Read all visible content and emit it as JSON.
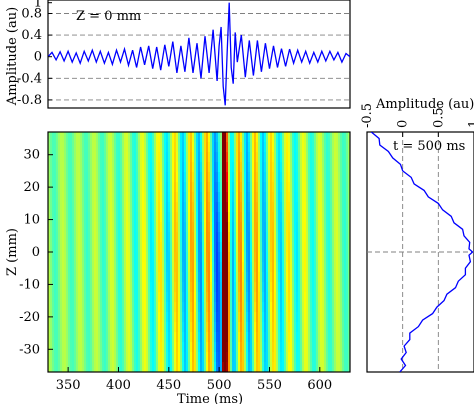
{
  "chart_data": [
    {
      "id": "top",
      "type": "line",
      "annotation": "Z = 0 mm",
      "ylabel": "Amplitude (au)",
      "yticks": [
        "1",
        "0.8",
        "0.4",
        "0",
        "-0.4",
        "-0.8"
      ],
      "ylim": [
        -0.95,
        1.05
      ],
      "xlim": [
        330,
        630
      ],
      "grid": "dashed horizontal at ±0.8, ±0.4",
      "line_color": "#0000ff",
      "series": [
        {
          "x": [
            330,
            334,
            338,
            342,
            346,
            350,
            354,
            358,
            362,
            366,
            370,
            374,
            378,
            382,
            386,
            390,
            394,
            398,
            402,
            406,
            410,
            414,
            418,
            422,
            426,
            430,
            434,
            438,
            442,
            446,
            450,
            454,
            458,
            462,
            466,
            470,
            474,
            478,
            482,
            486,
            490,
            494,
            498,
            500,
            502,
            504,
            506,
            508,
            510,
            512,
            514,
            516,
            518,
            522,
            526,
            530,
            534,
            538,
            542,
            546,
            550,
            554,
            558,
            562,
            566,
            570,
            574,
            578,
            582,
            586,
            590,
            594,
            598,
            602,
            606,
            610,
            614,
            618,
            622,
            626,
            630
          ],
          "y": [
            0.0,
            0.08,
            -0.06,
            0.09,
            -0.08,
            0.1,
            -0.1,
            0.07,
            -0.12,
            0.1,
            -0.08,
            0.12,
            -0.1,
            0.1,
            -0.12,
            0.08,
            -0.14,
            0.12,
            -0.1,
            0.14,
            -0.16,
            0.12,
            -0.2,
            0.18,
            -0.15,
            0.2,
            -0.22,
            0.18,
            -0.25,
            0.22,
            -0.18,
            0.28,
            -0.3,
            0.2,
            -0.28,
            0.35,
            -0.3,
            0.25,
            -0.4,
            0.38,
            -0.3,
            0.5,
            -0.45,
            0.2,
            0.55,
            -0.55,
            -0.9,
            0.1,
            1.0,
            -0.2,
            -0.5,
            0.45,
            -0.1,
            0.4,
            -0.38,
            0.3,
            -0.35,
            0.3,
            -0.28,
            0.25,
            -0.22,
            0.2,
            -0.2,
            0.15,
            -0.18,
            0.14,
            -0.12,
            0.12,
            -0.1,
            0.1,
            -0.12,
            0.08,
            -0.1,
            0.1,
            -0.08,
            0.1,
            -0.06,
            0.08,
            -0.1,
            0.06,
            0.0
          ]
        }
      ]
    },
    {
      "id": "heatmap",
      "type": "heatmap",
      "xlabel": "Time (ms)",
      "ylabel": "Z (mm)",
      "xticks": [
        "350",
        "400",
        "450",
        "500",
        "550",
        "600"
      ],
      "yticks": [
        "30",
        "20",
        "10",
        "0",
        "-10",
        "-20",
        "-30"
      ],
      "xlim": [
        330,
        630
      ],
      "ylim": [
        -37,
        37
      ],
      "colormap": "jet",
      "peak": {
        "time_ms": 505,
        "z_mm": 0
      }
    },
    {
      "id": "side",
      "type": "line",
      "annotation": "t = 500 ms",
      "xlabel": "Amplitude (au)",
      "xticks": [
        "-0.5",
        "0",
        "0.5",
        "1"
      ],
      "xlim": [
        -0.5,
        1.0
      ],
      "ylim": [
        -37,
        37
      ],
      "grid": "dashed vertical at 0 and 0.5, dashed horizontal at Z=0",
      "line_color": "#0000ff",
      "series": [
        {
          "z": [
            37,
            35,
            33,
            31,
            29,
            27,
            25,
            23,
            21,
            19,
            17,
            15,
            13,
            11,
            9,
            7,
            5,
            3,
            1,
            0,
            -1,
            -3,
            -5,
            -7,
            -9,
            -11,
            -13,
            -15,
            -17,
            -19,
            -21,
            -23,
            -25,
            -27,
            -29,
            -31,
            -33,
            -35,
            -37
          ],
          "amplitude": [
            -0.42,
            -0.35,
            -0.3,
            -0.22,
            -0.12,
            -0.05,
            0.02,
            0.1,
            0.18,
            0.28,
            0.38,
            0.48,
            0.58,
            0.66,
            0.74,
            0.82,
            0.88,
            0.92,
            0.95,
            0.96,
            0.95,
            0.93,
            0.9,
            0.86,
            0.8,
            0.72,
            0.64,
            0.56,
            0.5,
            0.4,
            0.3,
            0.2,
            0.12,
            0.08,
            0.04,
            0.03,
            0.0,
            0.02,
            -0.02
          ]
        }
      ]
    }
  ]
}
